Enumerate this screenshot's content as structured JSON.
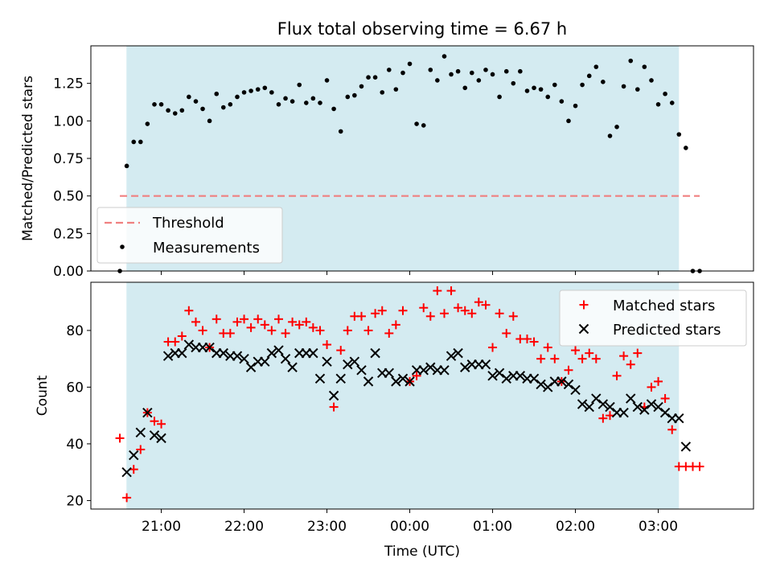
{
  "figure": {
    "title": "Flux total observing time = 6.67 h",
    "xlabel": "Time (UTC)",
    "x_ticks": [
      "21:00",
      "22:00",
      "23:00",
      "00:00",
      "01:00",
      "02:00",
      "03:00"
    ],
    "x_tick_hours": [
      21,
      22,
      23,
      24,
      25,
      26,
      27
    ],
    "xlim_hours": [
      20.15,
      28.15
    ],
    "shaded_window_hours": [
      20.58,
      27.25
    ],
    "shade_color": "#d4ebf1"
  },
  "chart_data": [
    {
      "type": "scatter",
      "ylabel": "Matched/Predicted stars",
      "ylim": [
        0,
        1.5
      ],
      "y_ticks": [
        "0.00",
        "0.25",
        "0.50",
        "0.75",
        "1.00",
        "1.25"
      ],
      "y_tick_values": [
        0,
        0.25,
        0.5,
        0.75,
        1.0,
        1.25
      ],
      "legend": {
        "position": "lower-left",
        "threshold_label": "Threshold",
        "measurements_label": "Measurements"
      },
      "threshold": {
        "value": 0.5,
        "x_range_hours": [
          20.5,
          27.5
        ],
        "color": "#f08080"
      },
      "measurements": {
        "color": "#000000",
        "x_hours": [
          20.5,
          20.583,
          20.667,
          20.75,
          20.833,
          20.917,
          21.0,
          21.083,
          21.167,
          21.25,
          21.333,
          21.417,
          21.5,
          21.583,
          21.667,
          21.75,
          21.833,
          21.917,
          22.0,
          22.083,
          22.167,
          22.25,
          22.333,
          22.417,
          22.5,
          22.583,
          22.667,
          22.75,
          22.833,
          22.917,
          23.0,
          23.083,
          23.167,
          23.25,
          23.333,
          23.417,
          23.5,
          23.583,
          23.667,
          23.75,
          23.833,
          23.917,
          24.0,
          24.083,
          24.167,
          24.25,
          24.333,
          24.417,
          24.5,
          24.583,
          24.667,
          24.75,
          24.833,
          24.917,
          25.0,
          25.083,
          25.167,
          25.25,
          25.333,
          25.417,
          25.5,
          25.583,
          25.667,
          25.75,
          25.833,
          25.917,
          26.0,
          26.083,
          26.167,
          26.25,
          26.333,
          26.417,
          26.5,
          26.583,
          26.667,
          26.75,
          26.833,
          26.917,
          27.0,
          27.083,
          27.167,
          27.25,
          27.333,
          27.417,
          27.5
        ],
        "y": [
          0.0,
          0.7,
          0.86,
          0.86,
          0.98,
          1.11,
          1.11,
          1.07,
          1.05,
          1.07,
          1.16,
          1.13,
          1.08,
          1.0,
          1.18,
          1.09,
          1.11,
          1.16,
          1.19,
          1.2,
          1.21,
          1.22,
          1.19,
          1.11,
          1.15,
          1.13,
          1.24,
          1.12,
          1.15,
          1.12,
          1.27,
          1.08,
          0.93,
          1.16,
          1.17,
          1.23,
          1.29,
          1.29,
          1.19,
          1.34,
          1.21,
          1.32,
          1.38,
          0.98,
          0.97,
          1.34,
          1.27,
          1.43,
          1.31,
          1.33,
          1.22,
          1.32,
          1.27,
          1.34,
          1.31,
          1.16,
          1.33,
          1.25,
          1.33,
          1.2,
          1.22,
          1.21,
          1.16,
          1.24,
          1.13,
          1.0,
          1.1,
          1.24,
          1.3,
          1.36,
          1.26,
          0.9,
          0.96,
          1.23,
          1.4,
          1.21,
          1.36,
          1.27,
          1.11,
          1.18,
          1.12,
          0.91,
          0.82,
          0.0,
          0.0
        ]
      }
    },
    {
      "type": "scatter",
      "ylabel": "Count",
      "ylim": [
        17,
        97
      ],
      "y_ticks": [
        "20",
        "40",
        "60",
        "80"
      ],
      "y_tick_values": [
        20,
        40,
        60,
        80
      ],
      "legend": {
        "position": "top-right"
      },
      "series": [
        {
          "name": "Matched stars",
          "marker": "plus",
          "color": "#ff0000",
          "x_hours": [
            20.5,
            20.583,
            20.667,
            20.75,
            20.833,
            20.917,
            21.0,
            21.083,
            21.167,
            21.25,
            21.333,
            21.417,
            21.5,
            21.583,
            21.667,
            21.75,
            21.833,
            21.917,
            22.0,
            22.083,
            22.167,
            22.25,
            22.333,
            22.417,
            22.5,
            22.583,
            22.667,
            22.75,
            22.833,
            22.917,
            23.0,
            23.083,
            23.167,
            23.25,
            23.333,
            23.417,
            23.5,
            23.583,
            23.667,
            23.75,
            23.833,
            23.917,
            24.0,
            24.083,
            24.167,
            24.25,
            24.333,
            24.417,
            24.5,
            24.583,
            24.667,
            24.75,
            24.833,
            24.917,
            25.0,
            25.083,
            25.167,
            25.25,
            25.333,
            25.417,
            25.5,
            25.583,
            25.667,
            25.75,
            25.833,
            25.917,
            26.0,
            26.083,
            26.167,
            26.25,
            26.333,
            26.417,
            26.5,
            26.583,
            26.667,
            26.75,
            26.833,
            26.917,
            27.0,
            27.083,
            27.167,
            27.25,
            27.333,
            27.417,
            27.5
          ],
          "y": [
            42,
            21,
            31,
            38,
            51,
            48,
            47,
            76,
            76,
            78,
            87,
            83,
            80,
            74,
            84,
            79,
            79,
            83,
            84,
            81,
            84,
            82,
            80,
            84,
            79,
            83,
            82,
            83,
            81,
            80,
            75,
            53,
            73,
            80,
            85,
            85,
            80,
            86,
            87,
            79,
            82,
            87,
            62,
            64,
            88,
            85,
            94,
            86,
            94,
            88,
            87,
            86,
            90,
            89,
            74,
            86,
            79,
            85,
            77,
            77,
            76,
            70,
            74,
            70,
            62,
            66,
            73,
            70,
            72,
            70,
            49,
            50,
            64,
            71,
            68,
            72,
            53,
            60,
            62,
            56,
            45,
            32,
            32,
            32,
            32
          ]
        },
        {
          "name": "Predicted stars",
          "marker": "x",
          "color": "#000000",
          "x_hours": [
            20.583,
            20.667,
            20.75,
            20.833,
            20.917,
            21.0,
            21.083,
            21.167,
            21.25,
            21.333,
            21.417,
            21.5,
            21.583,
            21.667,
            21.75,
            21.833,
            21.917,
            22.0,
            22.083,
            22.167,
            22.25,
            22.333,
            22.417,
            22.5,
            22.583,
            22.667,
            22.75,
            22.833,
            22.917,
            23.0,
            23.083,
            23.167,
            23.25,
            23.333,
            23.417,
            23.5,
            23.583,
            23.667,
            23.75,
            23.833,
            23.917,
            24.0,
            24.083,
            24.167,
            24.25,
            24.333,
            24.417,
            24.5,
            24.583,
            24.667,
            24.75,
            24.833,
            24.917,
            25.0,
            25.083,
            25.167,
            25.25,
            25.333,
            25.417,
            25.5,
            25.583,
            25.667,
            25.75,
            25.833,
            25.917,
            26.0,
            26.083,
            26.167,
            26.25,
            26.333,
            26.417,
            26.5,
            26.583,
            26.667,
            26.75,
            26.833,
            26.917,
            27.0,
            27.083,
            27.167,
            27.25,
            27.333
          ],
          "y": [
            30,
            36,
            44,
            51,
            43,
            42,
            71,
            72,
            72,
            75,
            74,
            74,
            74,
            72,
            72,
            71,
            71,
            70,
            67,
            69,
            69,
            72,
            73,
            70,
            67,
            72,
            72,
            72,
            63,
            69,
            57,
            63,
            68,
            69,
            66,
            62,
            72,
            65,
            65,
            62,
            63,
            62,
            66,
            66,
            67,
            66,
            66,
            71,
            72,
            67,
            68,
            68,
            68,
            64,
            65,
            63,
            64,
            64,
            63,
            63,
            61,
            60,
            62,
            62,
            61,
            59,
            54,
            53,
            56,
            54,
            53,
            51,
            51,
            56,
            53,
            52,
            54,
            53,
            51,
            49,
            49,
            39
          ]
        }
      ]
    }
  ]
}
